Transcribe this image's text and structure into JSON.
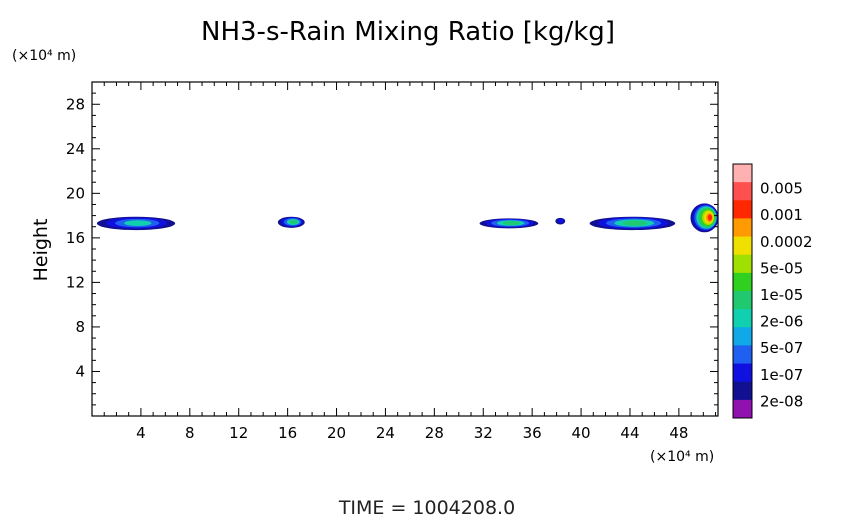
{
  "chart_data": {
    "type": "heatmap",
    "title": "NH3-s-Rain Mixing Ratio [kg/kg]",
    "ylabel": "Height",
    "x_unit": "(×10⁴ m)",
    "y_unit": "(×10⁴ m)",
    "xlim": [
      0,
      51.2
    ],
    "ylim": [
      0,
      30
    ],
    "x_ticks": [
      "4",
      "8",
      "12",
      "16",
      "20",
      "24",
      "28",
      "32",
      "36",
      "40",
      "44",
      "48"
    ],
    "x_tick_values": [
      4,
      8,
      12,
      16,
      20,
      24,
      28,
      32,
      36,
      40,
      44,
      48
    ],
    "y_ticks": [
      "4",
      "8",
      "12",
      "16",
      "20",
      "24",
      "28"
    ],
    "y_tick_values": [
      4,
      8,
      12,
      16,
      20,
      24,
      28
    ],
    "time_label": "TIME  =  1004208.0",
    "colorbar": {
      "labels": [
        "0.005",
        "0.001",
        "0.0002",
        "5e-05",
        "1e-05",
        "2e-06",
        "5e-07",
        "1e-07",
        "2e-08"
      ],
      "colors": [
        "#ffb0b0",
        "#ff5050",
        "#ff2800",
        "#ff9a00",
        "#f0e000",
        "#a0e000",
        "#30d020",
        "#20c870",
        "#10d0b0",
        "#10a8e8",
        "#2060f0",
        "#1010e0",
        "#101090",
        "#9010b0"
      ]
    },
    "features": [
      {
        "x_center": 3.6,
        "y_center": 17.3,
        "width": 6.4,
        "height": 1.2,
        "max_level": 4
      },
      {
        "x_center": 16.3,
        "y_center": 17.4,
        "width": 2.2,
        "height": 1.0,
        "max_level": 5
      },
      {
        "x_center": 34.1,
        "y_center": 17.3,
        "width": 4.8,
        "height": 0.9,
        "max_level": 5
      },
      {
        "x_center": 38.3,
        "y_center": 17.5,
        "width": 0.8,
        "height": 0.6,
        "max_level": 2
      },
      {
        "x_center": 44.2,
        "y_center": 17.3,
        "width": 7.0,
        "height": 1.2,
        "max_level": 5
      },
      {
        "x_center": 50.1,
        "y_center": 17.8,
        "width": 2.3,
        "height": 2.6,
        "max_level": 10
      }
    ]
  }
}
